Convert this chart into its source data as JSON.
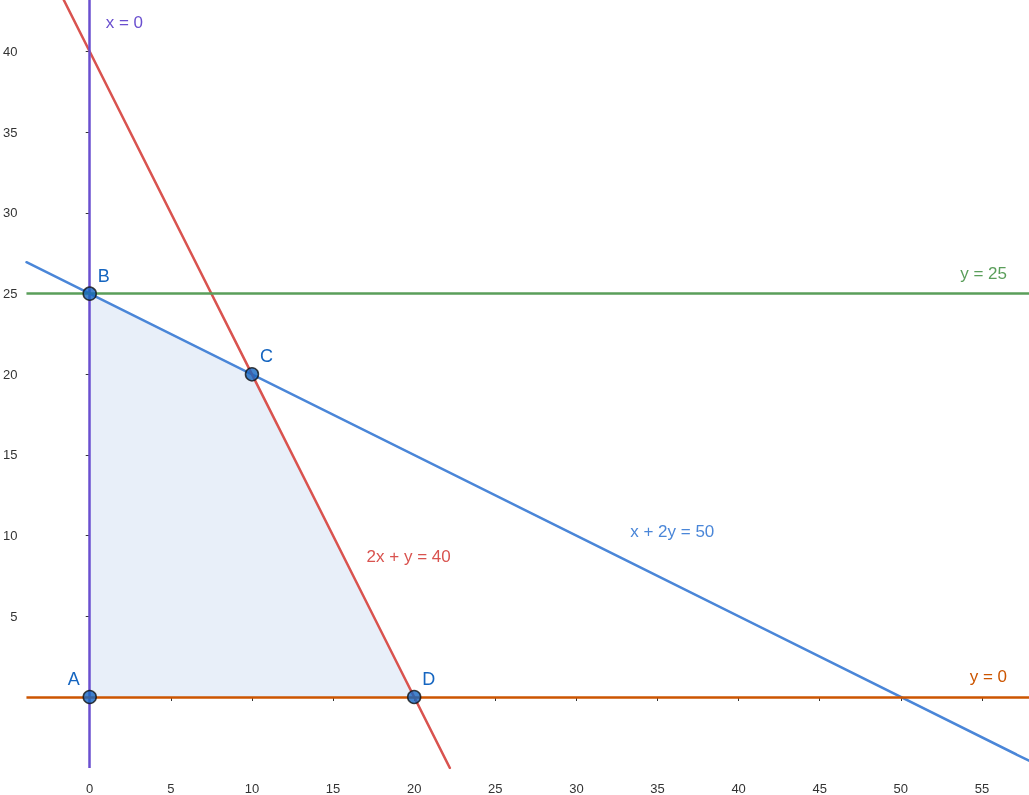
{
  "chart_data": {
    "type": "line",
    "xlim": [
      -3.9,
      57.9
    ],
    "ylim": [
      -4.4,
      43.2
    ],
    "xticks": [
      0,
      5,
      10,
      15,
      20,
      25,
      30,
      35,
      40,
      45,
      50,
      55
    ],
    "yticks": [
      5,
      10,
      15,
      20,
      25,
      30,
      35,
      40
    ],
    "grid": false,
    "legend": false,
    "marker": "none",
    "line_style": "solid",
    "series": [
      {
        "type": "area",
        "color": "#e8eff9",
        "x": [
          0,
          10,
          20
        ],
        "values": [
          25,
          20,
          0
        ]
      },
      {
        "name": "x + 2y = 50",
        "color": "#4a86d8",
        "x": [
          -3.9,
          32.7,
          57.9
        ],
        "values": [
          26.95,
          8.65,
          -3.95
        ]
      },
      {
        "name": "2x + y = 40",
        "color": "#d9534f",
        "x": [
          -1.6,
          16.45,
          22.2
        ],
        "values": [
          43.2,
          7.1,
          -4.4
        ]
      },
      {
        "type": "scatter",
        "marker": "circle",
        "color": "#1565c0",
        "x": [
          0,
          0,
          10,
          20
        ],
        "values": [
          0,
          25,
          20,
          0
        ]
      }
    ],
    "ref_lines": [
      {
        "axis": "x",
        "value": 0,
        "label": "x = 0",
        "color": "#6a4fcf"
      },
      {
        "axis": "y",
        "value": 25,
        "label": "y = 25",
        "color": "#5a9e5a"
      },
      {
        "axis": "y",
        "value": 0,
        "label": "y = 0",
        "color": "#cc5500"
      }
    ],
    "annotations": [
      {
        "text": "A",
        "x": 0,
        "y": 0
      },
      {
        "text": "B",
        "x": 0,
        "y": 25
      },
      {
        "text": "C",
        "x": 10,
        "y": 20
      },
      {
        "text": "D",
        "x": 20,
        "y": 0
      }
    ]
  }
}
